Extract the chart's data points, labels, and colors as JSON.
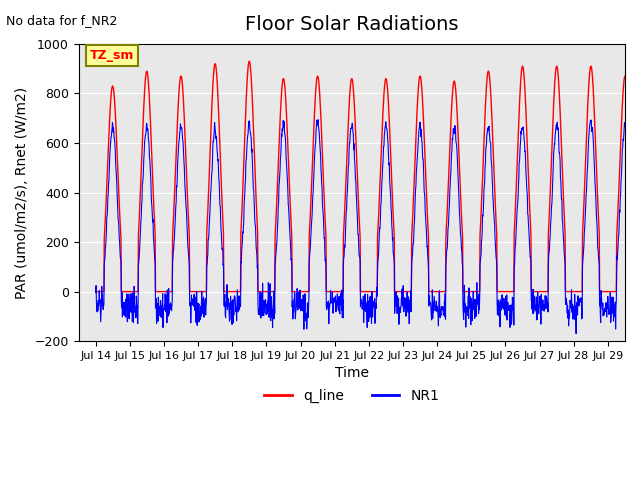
{
  "title": "Floor Solar Radiations",
  "xlabel": "Time",
  "ylabel": "PAR (umol/m2/s), Rnet (W/m2)",
  "note": "No data for f_NR2",
  "legend_label": "TZ_sm",
  "ylim": [
    -200,
    1000
  ],
  "yticks": [
    -200,
    0,
    200,
    400,
    600,
    800,
    1000
  ],
  "xlim_start": 13.5,
  "xlim_end": 29.5,
  "xtick_positions": [
    14,
    15,
    16,
    17,
    18,
    19,
    20,
    21,
    22,
    23,
    24,
    25,
    26,
    27,
    28,
    29
  ],
  "xtick_labels": [
    "Jul 14",
    "Jul 15",
    "Jul 16",
    "Jul 17",
    "Jul 18",
    "Jul 19",
    "Jul 20",
    "Jul 21",
    "Jul 22",
    "Jul 23",
    "Jul 24",
    "Jul 25",
    "Jul 26",
    "Jul 27",
    "Jul 28",
    "Jul 29"
  ],
  "line1_color": "#FF0000",
  "line2_color": "#0000FF",
  "line1_label": "q_line",
  "line2_label": "NR1",
  "background_color": "#E8E8E8",
  "title_fontsize": 14,
  "label_fontsize": 10,
  "day_peaks_red": [
    830,
    890,
    870,
    920,
    930,
    860,
    870,
    860,
    860,
    870,
    850,
    890,
    910,
    910,
    910,
    870
  ],
  "day_peaks_blue": [
    670,
    670,
    670,
    650,
    670,
    670,
    680,
    670,
    670,
    670,
    660,
    660,
    670,
    680,
    690,
    670
  ]
}
